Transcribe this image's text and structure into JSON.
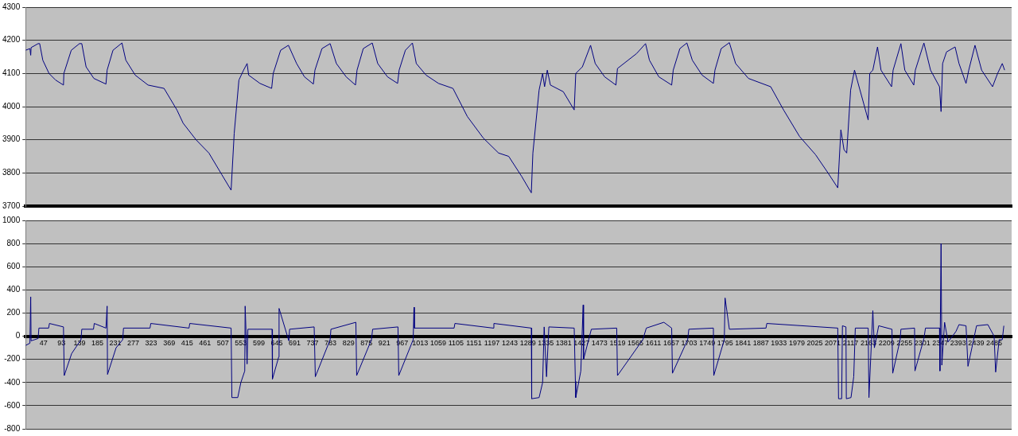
{
  "chart_data": [
    {
      "type": "line",
      "xlim": [
        1,
        2530
      ],
      "ylim": [
        3700,
        4300
      ],
      "yticks": [
        3700,
        3800,
        3900,
        4000,
        4100,
        4200,
        4300
      ],
      "grid": "y",
      "legend": false,
      "marker": "none",
      "line_style": "solid",
      "tick_labels": "y",
      "series": [
        {
          "color": "#000080",
          "x": [
            1,
            12,
            14,
            15,
            33,
            37,
            45,
            61,
            78,
            98,
            99,
            118,
            139,
            145,
            156,
            176,
            207,
            210,
            225,
            248,
            258,
            282,
            315,
            356,
            389,
            405,
            438,
            471,
            504,
            528,
            536,
            548,
            560,
            569,
            573,
            602,
            632,
            636,
            655,
            675,
            696,
            716,
            739,
            743,
            761,
            782,
            798,
            823,
            847,
            851,
            867,
            890,
            904,
            929,
            955,
            959,
            975,
            993,
            1003,
            1028,
            1060,
            1097,
            1134,
            1175,
            1214,
            1240,
            1273,
            1298,
            1302,
            1318,
            1327,
            1332,
            1339,
            1347,
            1380,
            1408,
            1412,
            1429,
            1450,
            1462,
            1486,
            1515,
            1519,
            1568,
            1591,
            1601,
            1625,
            1658,
            1662,
            1679,
            1697,
            1711,
            1736,
            1765,
            1769,
            1785,
            1806,
            1822,
            1855,
            1912,
            1945,
            1986,
            2027,
            2059,
            2084,
            2092,
            2100,
            2107,
            2117,
            2127,
            2162,
            2166,
            2174,
            2186,
            2195,
            2222,
            2226,
            2246,
            2256,
            2279,
            2283,
            2305,
            2322,
            2345,
            2349,
            2353,
            2363,
            2385,
            2395,
            2413,
            2420,
            2436,
            2453,
            2481,
            2494,
            2506,
            2512
          ],
          "values": [
            4170,
            4175,
            4155,
            4178,
            4190,
            4190,
            4140,
            4100,
            4080,
            4065,
            4100,
            4170,
            4190,
            4190,
            4120,
            4085,
            4068,
            4110,
            4170,
            4192,
            4140,
            4095,
            4065,
            4055,
            3990,
            3950,
            3900,
            3860,
            3795,
            3748,
            3920,
            4080,
            4110,
            4130,
            4095,
            4070,
            4055,
            4100,
            4170,
            4185,
            4130,
            4090,
            4068,
            4110,
            4175,
            4190,
            4130,
            4090,
            4065,
            4110,
            4175,
            4192,
            4130,
            4090,
            4070,
            4110,
            4170,
            4192,
            4130,
            4095,
            4070,
            4055,
            3970,
            3905,
            3860,
            3850,
            3790,
            3740,
            3860,
            4050,
            4100,
            4060,
            4110,
            4065,
            4045,
            3990,
            4100,
            4120,
            4185,
            4130,
            4090,
            4065,
            4115,
            4160,
            4190,
            4140,
            4090,
            4065,
            4110,
            4175,
            4192,
            4140,
            4095,
            4070,
            4110,
            4175,
            4193,
            4130,
            4085,
            4060,
            3990,
            3910,
            3855,
            3800,
            3755,
            3930,
            3870,
            3860,
            4050,
            4110,
            3960,
            4100,
            4110,
            4180,
            4110,
            4060,
            4110,
            4190,
            4110,
            4065,
            4110,
            4192,
            4110,
            4060,
            3985,
            4130,
            4165,
            4180,
            4130,
            4070,
            4110,
            4185,
            4110,
            4060,
            4100,
            4130,
            4110
          ]
        }
      ]
    },
    {
      "type": "line",
      "xlim": [
        1,
        2530
      ],
      "ylim": [
        -800,
        1000
      ],
      "yticks": [
        -800,
        -600,
        -400,
        -200,
        0,
        200,
        400,
        600,
        800,
        1000
      ],
      "xticks": [
        47,
        93,
        139,
        185,
        231,
        277,
        323,
        369,
        415,
        461,
        507,
        553,
        599,
        645,
        691,
        737,
        783,
        829,
        875,
        921,
        967,
        1013,
        1059,
        1105,
        1151,
        1197,
        1243,
        1289,
        1335,
        1381,
        1427,
        1473,
        1519,
        1565,
        1611,
        1657,
        1703,
        1749,
        1795,
        1841,
        1887,
        1933,
        1979,
        2025,
        2071,
        2117,
        2163,
        2209,
        2255,
        2301,
        2347,
        2393,
        2439,
        2485
      ],
      "grid": "y",
      "legend": false,
      "marker": "none",
      "line_style": "solid",
      "series": [
        {
          "color": "#000080",
          "x": [
            1,
            12,
            14,
            15,
            33,
            35,
            60,
            62,
            98,
            100,
            119,
            143,
            145,
            175,
            177,
            207,
            210,
            211,
            233,
            250,
            252,
            320,
            322,
            420,
            422,
            528,
            530,
            545,
            553,
            563,
            564,
            569,
            571,
            633,
            634,
            650,
            651,
            676,
            678,
            741,
            744,
            782,
            784,
            848,
            850,
            888,
            891,
            956,
            958,
            995,
            997,
            998,
            1100,
            1102,
            1200,
            1202,
            1298,
            1299,
            1318,
            1327,
            1331,
            1337,
            1343,
            1408,
            1411,
            1412,
            1425,
            1431,
            1432,
            1452,
            1517,
            1519,
            1584,
            1593,
            1638,
            1658,
            1660,
            1699,
            1702,
            1765,
            1766,
            1793,
            1795,
            1806,
            1900,
            1902,
            2084,
            2086,
            2094,
            2096,
            2105,
            2106,
            2118,
            2125,
            2129,
            2162,
            2164,
            2174,
            2178,
            2189,
            2223,
            2225,
            2244,
            2246,
            2281,
            2282,
            2305,
            2309,
            2345,
            2346,
            2349,
            2351,
            2358,
            2367,
            2387,
            2395,
            2413,
            2418,
            2440,
            2469,
            2485,
            2489,
            2498,
            2506,
            2510
          ],
          "values": [
            -80,
            -60,
            340,
            -40,
            -20,
            70,
            70,
            110,
            80,
            -340,
            -150,
            -30,
            60,
            60,
            110,
            70,
            260,
            -330,
            -100,
            -30,
            70,
            70,
            110,
            70,
            110,
            70,
            -530,
            -530,
            -400,
            -300,
            260,
            -240,
            60,
            60,
            -370,
            -180,
            240,
            -40,
            60,
            80,
            -350,
            -30,
            60,
            120,
            -340,
            -30,
            60,
            80,
            -340,
            -30,
            250,
            70,
            70,
            110,
            70,
            110,
            70,
            -540,
            -530,
            -400,
            80,
            -350,
            80,
            70,
            -390,
            -530,
            -300,
            270,
            -200,
            60,
            70,
            -340,
            -30,
            70,
            120,
            70,
            -320,
            -30,
            60,
            70,
            -340,
            -30,
            330,
            60,
            70,
            110,
            70,
            -540,
            -540,
            90,
            80,
            -540,
            -530,
            -350,
            70,
            70,
            -530,
            220,
            -100,
            90,
            60,
            -320,
            -30,
            60,
            70,
            -300,
            -20,
            70,
            70,
            -300,
            800,
            -250,
            120,
            -50,
            40,
            100,
            90,
            -260,
            90,
            100,
            0,
            -310,
            -30,
            -30,
            90
          ]
        }
      ]
    }
  ]
}
